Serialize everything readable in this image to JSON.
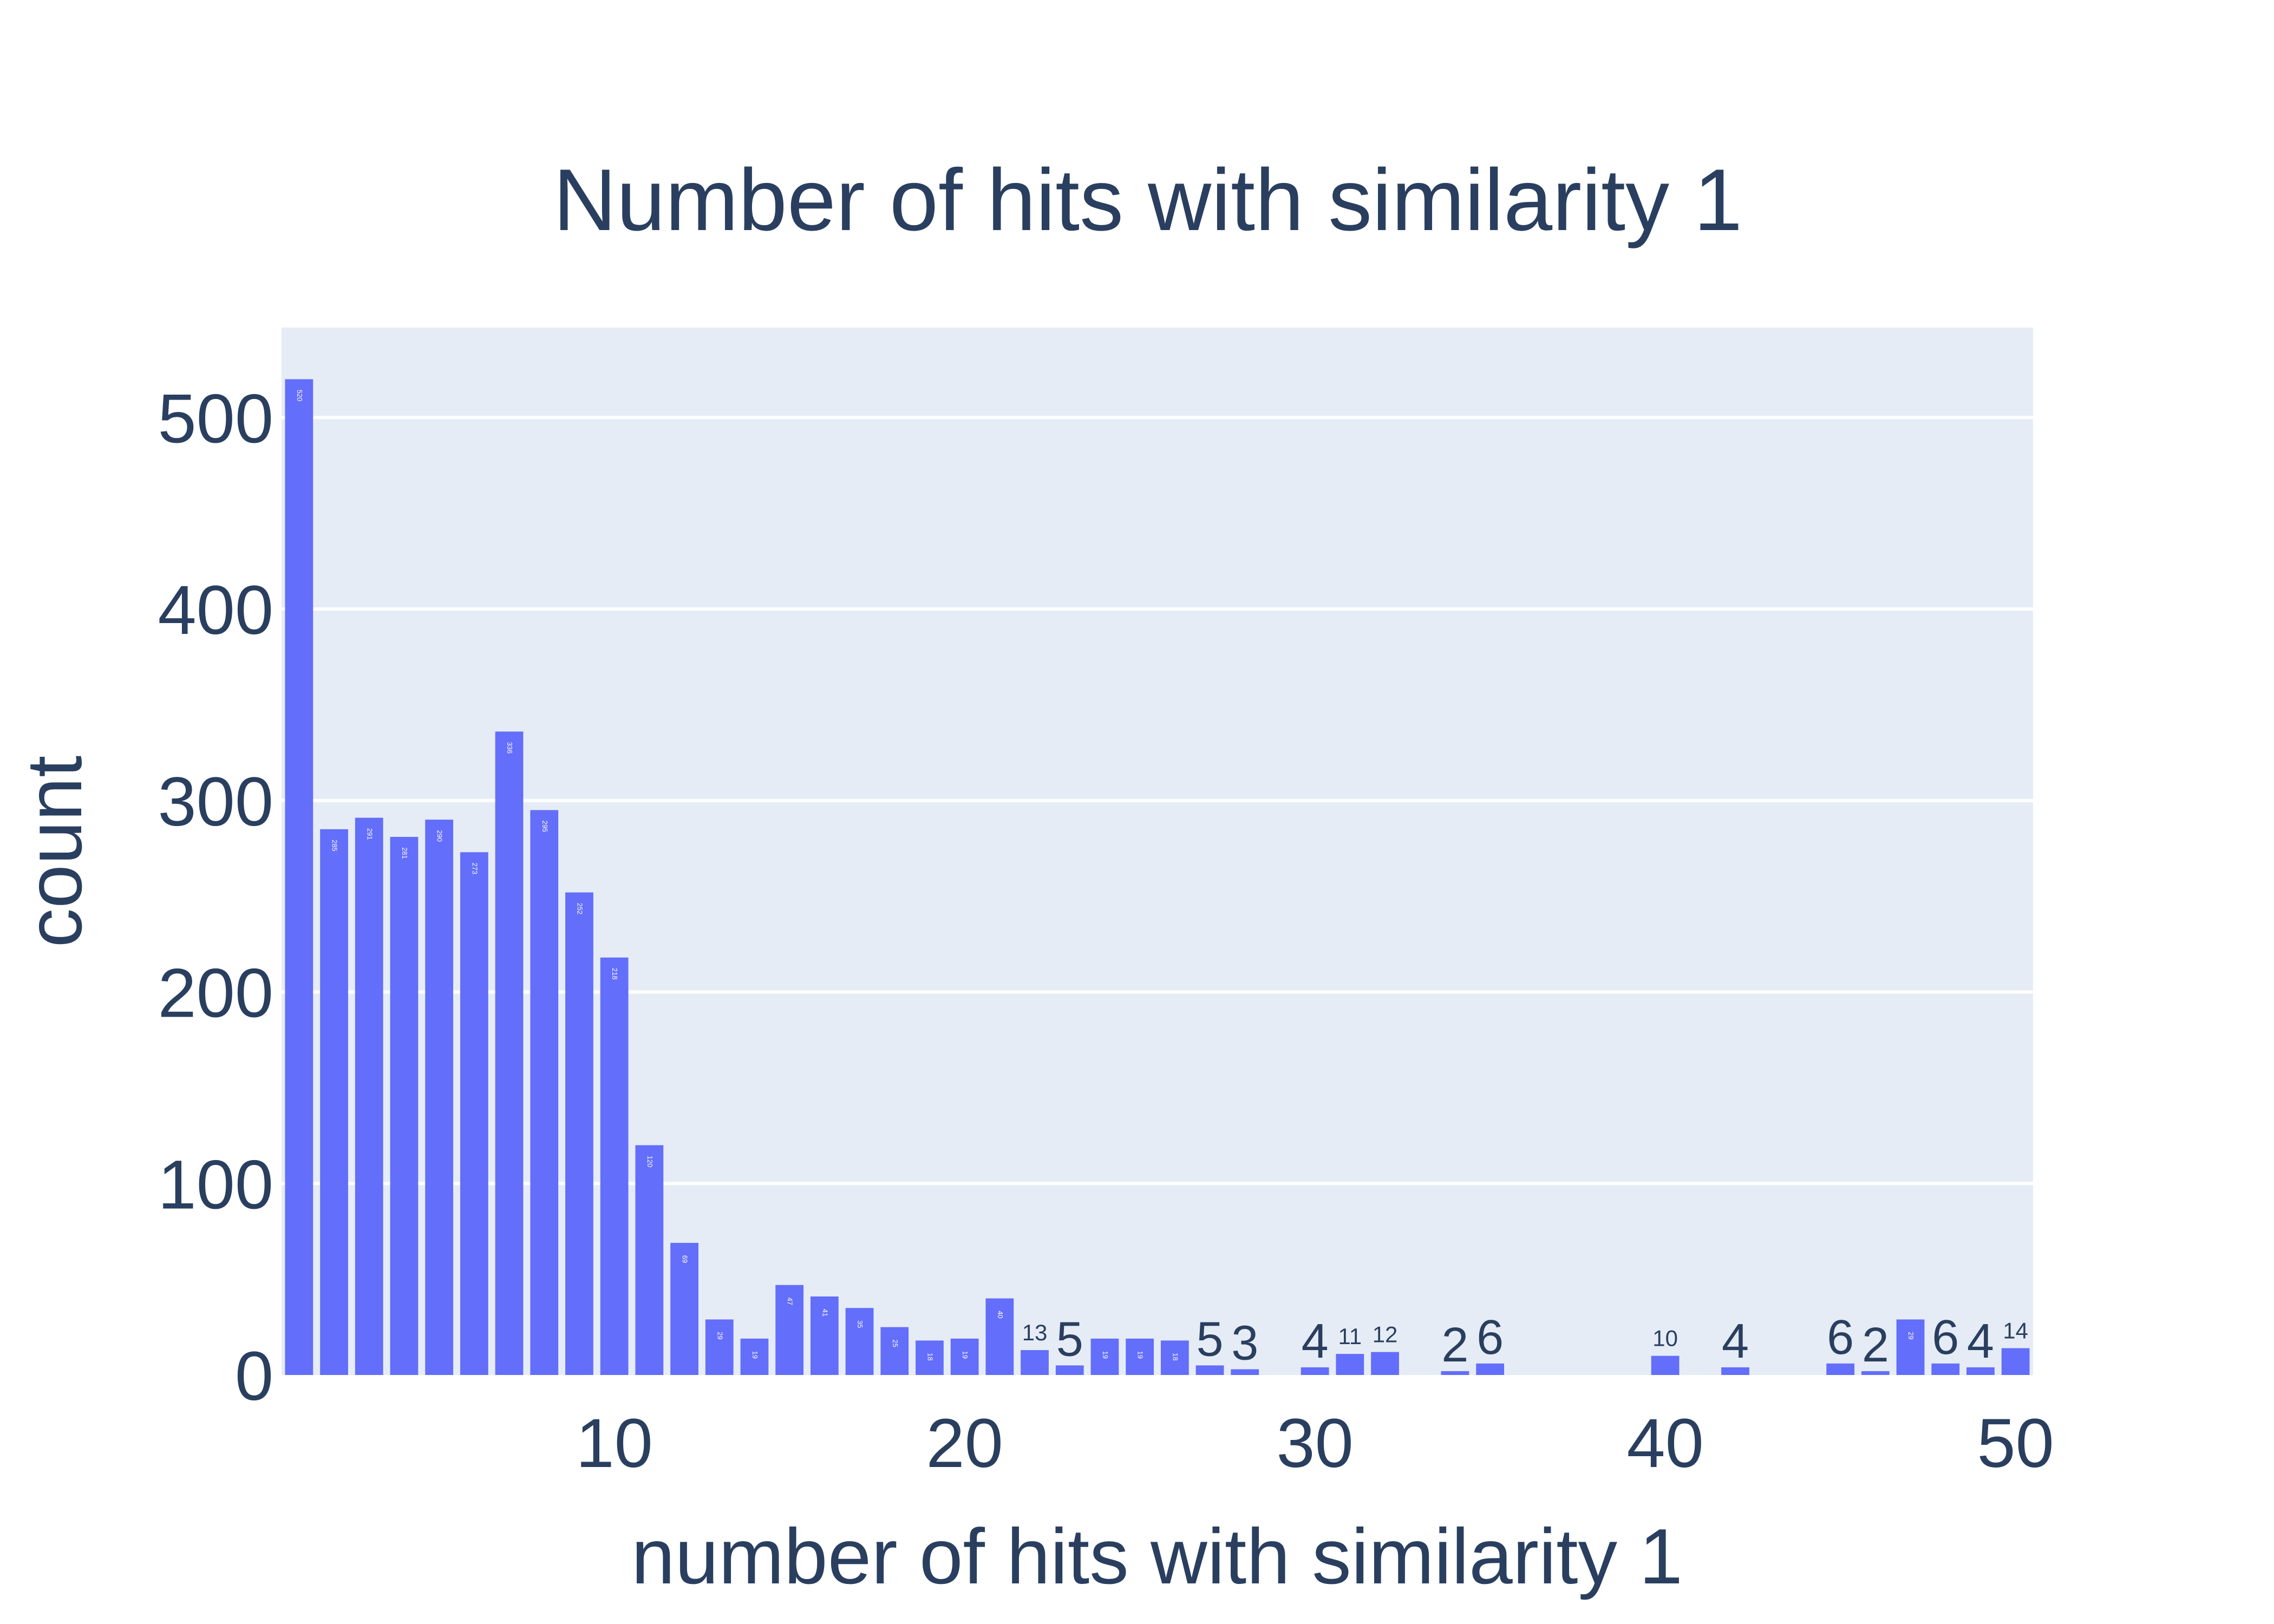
{
  "chart_data": {
    "type": "bar",
    "title": "Number of hits with similarity 1",
    "xlabel": "number of hits with similarity 1",
    "ylabel": "count",
    "x_ticks": [
      10,
      20,
      30,
      40,
      50
    ],
    "y_ticks": [
      0,
      100,
      200,
      300,
      400,
      500
    ],
    "xlim": [
      0.5,
      50.5
    ],
    "ylim": [
      0,
      547
    ],
    "grid": true,
    "legend": "none",
    "x": [
      1,
      2,
      3,
      4,
      5,
      6,
      7,
      8,
      9,
      10,
      11,
      12,
      13,
      14,
      15,
      16,
      17,
      18,
      19,
      20,
      21,
      22,
      23,
      24,
      25,
      26,
      27,
      28,
      30,
      31,
      32,
      34,
      35,
      40,
      42,
      45,
      46,
      47,
      48,
      49,
      50
    ],
    "values": [
      520,
      285,
      291,
      281,
      290,
      273,
      336,
      295,
      252,
      218,
      120,
      69,
      29,
      19,
      47,
      41,
      35,
      25,
      18,
      19,
      40,
      13,
      5,
      19,
      19,
      18,
      5,
      3,
      4,
      11,
      12,
      2,
      6,
      10,
      4,
      6,
      2,
      29,
      6,
      4,
      14
    ],
    "labels": [
      "520",
      "285",
      "291",
      "281",
      "290",
      "273",
      "336",
      "295",
      "252",
      "218",
      "120",
      "69",
      "29",
      "19",
      "47",
      "41",
      "35",
      "25",
      "18",
      "19",
      "40",
      "13",
      "5",
      "19",
      "19",
      "18",
      "5",
      "3",
      "4",
      "11",
      "12",
      "2",
      "6",
      "10",
      "4",
      "6",
      "2",
      "29",
      "6",
      "4",
      "14"
    ]
  },
  "colors": {
    "bar": "#636efa",
    "plot_bg": "#e5ecf6",
    "grid": "#ffffff",
    "text": "#2a3f5f",
    "page_bg": "#ffffff"
  }
}
